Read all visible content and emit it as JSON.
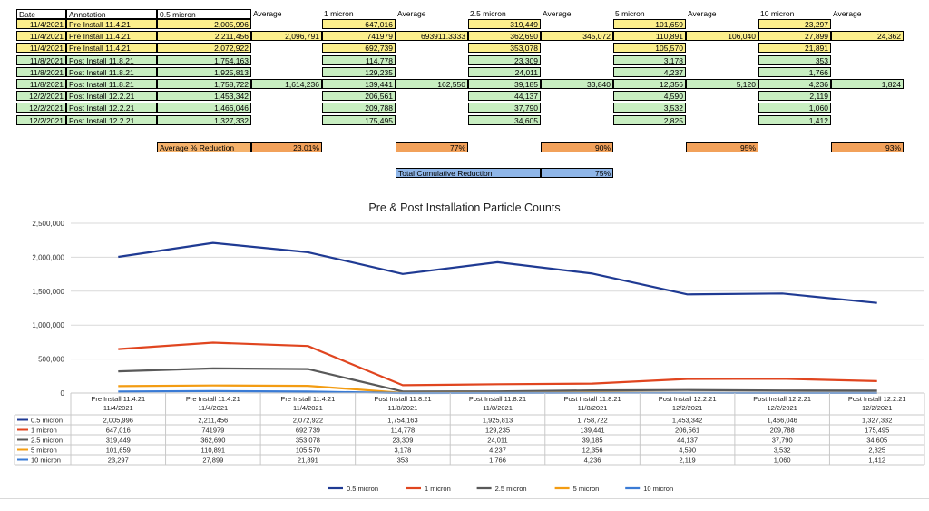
{
  "sheet": {
    "headers": [
      "Date",
      "Annotation",
      "0.5 micron",
      "Average",
      "1 micron",
      "Average",
      "2.5 micron",
      "Average",
      "5 micron",
      "Average",
      "10 micron",
      "Average"
    ],
    "rows": [
      {
        "date": "11/4/2021",
        "annotation": "Pre Install 11.4.21",
        "v05": "2,005,996",
        "v1": "647,016",
        "v25": "319,449",
        "v5": "101,659",
        "v10": "23,297",
        "color": "#fcef8c"
      },
      {
        "date": "11/4/2021",
        "annotation": "Pre Install 11.4.21",
        "v05": "2,211,456",
        "a05": "2,096,791",
        "v1": "741979",
        "a1": "693911.3333",
        "v25": "362,690",
        "a25": "345,072",
        "v5": "110,891",
        "a5": "106,040",
        "v10": "27,899",
        "a10": "24,362",
        "color": "#fcef8c"
      },
      {
        "date": "11/4/2021",
        "annotation": "Pre Install 11.4.21",
        "v05": "2,072,922",
        "v1": "692,739",
        "v25": "353,078",
        "v5": "105,570",
        "v10": "21,891",
        "color": "#fcef8c"
      },
      {
        "date": "11/8/2021",
        "annotation": "Post Install 11.8.21",
        "v05": "1,754,163",
        "v1": "114,778",
        "v25": "23,309",
        "v5": "3,178",
        "v10": "353",
        "color": "#c8eec1"
      },
      {
        "date": "11/8/2021",
        "annotation": "Post Install 11.8.21",
        "v05": "1,925,813",
        "v1": "129,235",
        "v25": "24,011",
        "v5": "4,237",
        "v10": "1,766",
        "color": "#c8eec1"
      },
      {
        "date": "11/8/2021",
        "annotation": "Post Install 11.8.21",
        "v05": "1,758,722",
        "a05": "1,614,236",
        "v1": "139,441",
        "a1": "162,550",
        "v25": "39,185",
        "a25": "33,840",
        "v5": "12,356",
        "a5": "5,120",
        "v10": "4,236",
        "a10": "1,824",
        "color": "#c8eec1"
      },
      {
        "date": "12/2/2021",
        "annotation": "Post Install 12.2.21",
        "v05": "1,453,342",
        "v1": "206,561",
        "v25": "44,137",
        "v5": "4,590",
        "v10": "2,119",
        "color": "#c8eec1"
      },
      {
        "date": "12/2/2021",
        "annotation": "Post Install 12.2.21",
        "v05": "1,466,046",
        "v1": "209,788",
        "v25": "37,790",
        "v5": "3,532",
        "v10": "1,060",
        "color": "#c8eec1"
      },
      {
        "date": "12/2/2021",
        "annotation": "Post Install 12.2.21",
        "v05": "1,327,332",
        "v1": "175,495",
        "v25": "34,605",
        "v5": "2,825",
        "v10": "1,412",
        "color": "#c8eec1"
      }
    ],
    "reduction_label": "Average % Reduction",
    "reductions": [
      "23.01%",
      "77%",
      "90%",
      "95%",
      "93%"
    ],
    "cumulative_label": "Total Cumulative Reduction",
    "cumulative_value": "75%"
  },
  "chart_data": {
    "type": "line",
    "title": "Pre & Post Installation Particle Counts",
    "xlabel": "",
    "ylabel": "",
    "ylim": [
      0,
      2500000
    ],
    "yticks": [
      "0",
      "500,000",
      "1,000,000",
      "1,500,000",
      "2,000,000",
      "2,500,000"
    ],
    "grid": true,
    "legend_position": "bottom",
    "categories": [
      {
        "line1": "Pre Install 11.4.21",
        "line2": "11/4/2021"
      },
      {
        "line1": "Pre Install 11.4.21",
        "line2": "11/4/2021"
      },
      {
        "line1": "Pre Install 11.4.21",
        "line2": "11/4/2021"
      },
      {
        "line1": "Post Install 11.8.21",
        "line2": "11/8/2021"
      },
      {
        "line1": "Post Install 11.8.21",
        "line2": "11/8/2021"
      },
      {
        "line1": "Post Install 11.8.21",
        "line2": "11/8/2021"
      },
      {
        "line1": "Post Install 12.2.21",
        "line2": "12/2/2021"
      },
      {
        "line1": "Post Install 12.2.21",
        "line2": "12/2/2021"
      },
      {
        "line1": "Post Install 12.2.21",
        "line2": "12/2/2021"
      }
    ],
    "series": [
      {
        "name": "0.5 micron",
        "color": "#1f3a93",
        "values": [
          2005996,
          2211456,
          2072922,
          1754163,
          1925813,
          1758722,
          1453342,
          1466046,
          1327332
        ],
        "labels": [
          "2,005,996",
          "2,211,456",
          "2,072,922",
          "1,754,163",
          "1,925,813",
          "1,758,722",
          "1,453,342",
          "1,466,046",
          "1,327,332"
        ]
      },
      {
        "name": "1 micron",
        "color": "#e0451f",
        "values": [
          647016,
          741979,
          692739,
          114778,
          129235,
          139441,
          206561,
          209788,
          175495
        ],
        "labels": [
          "647,016",
          "741979",
          "692,739",
          "114,778",
          "129,235",
          "139,441",
          "206,561",
          "209,788",
          "175,495"
        ]
      },
      {
        "name": "2.5 micron",
        "color": "#595959",
        "values": [
          319449,
          362690,
          353078,
          23309,
          24011,
          39185,
          44137,
          37790,
          34605
        ],
        "labels": [
          "319,449",
          "362,690",
          "353,078",
          "23,309",
          "24,011",
          "39,185",
          "44,137",
          "37,790",
          "34,605"
        ]
      },
      {
        "name": "5 micron",
        "color": "#f39c12",
        "values": [
          101659,
          110891,
          105570,
          3178,
          4237,
          12356,
          4590,
          3532,
          2825
        ],
        "labels": [
          "101,659",
          "110,891",
          "105,570",
          "3,178",
          "4,237",
          "12,356",
          "4,590",
          "3,532",
          "2,825"
        ]
      },
      {
        "name": "10 micron",
        "color": "#3a7bd5",
        "values": [
          23297,
          27899,
          21891,
          353,
          1766,
          4236,
          2119,
          1060,
          1412
        ],
        "labels": [
          "23,297",
          "27,899",
          "21,891",
          "353",
          "1,766",
          "4,236",
          "2,119",
          "1,060",
          "1,412"
        ]
      }
    ]
  }
}
